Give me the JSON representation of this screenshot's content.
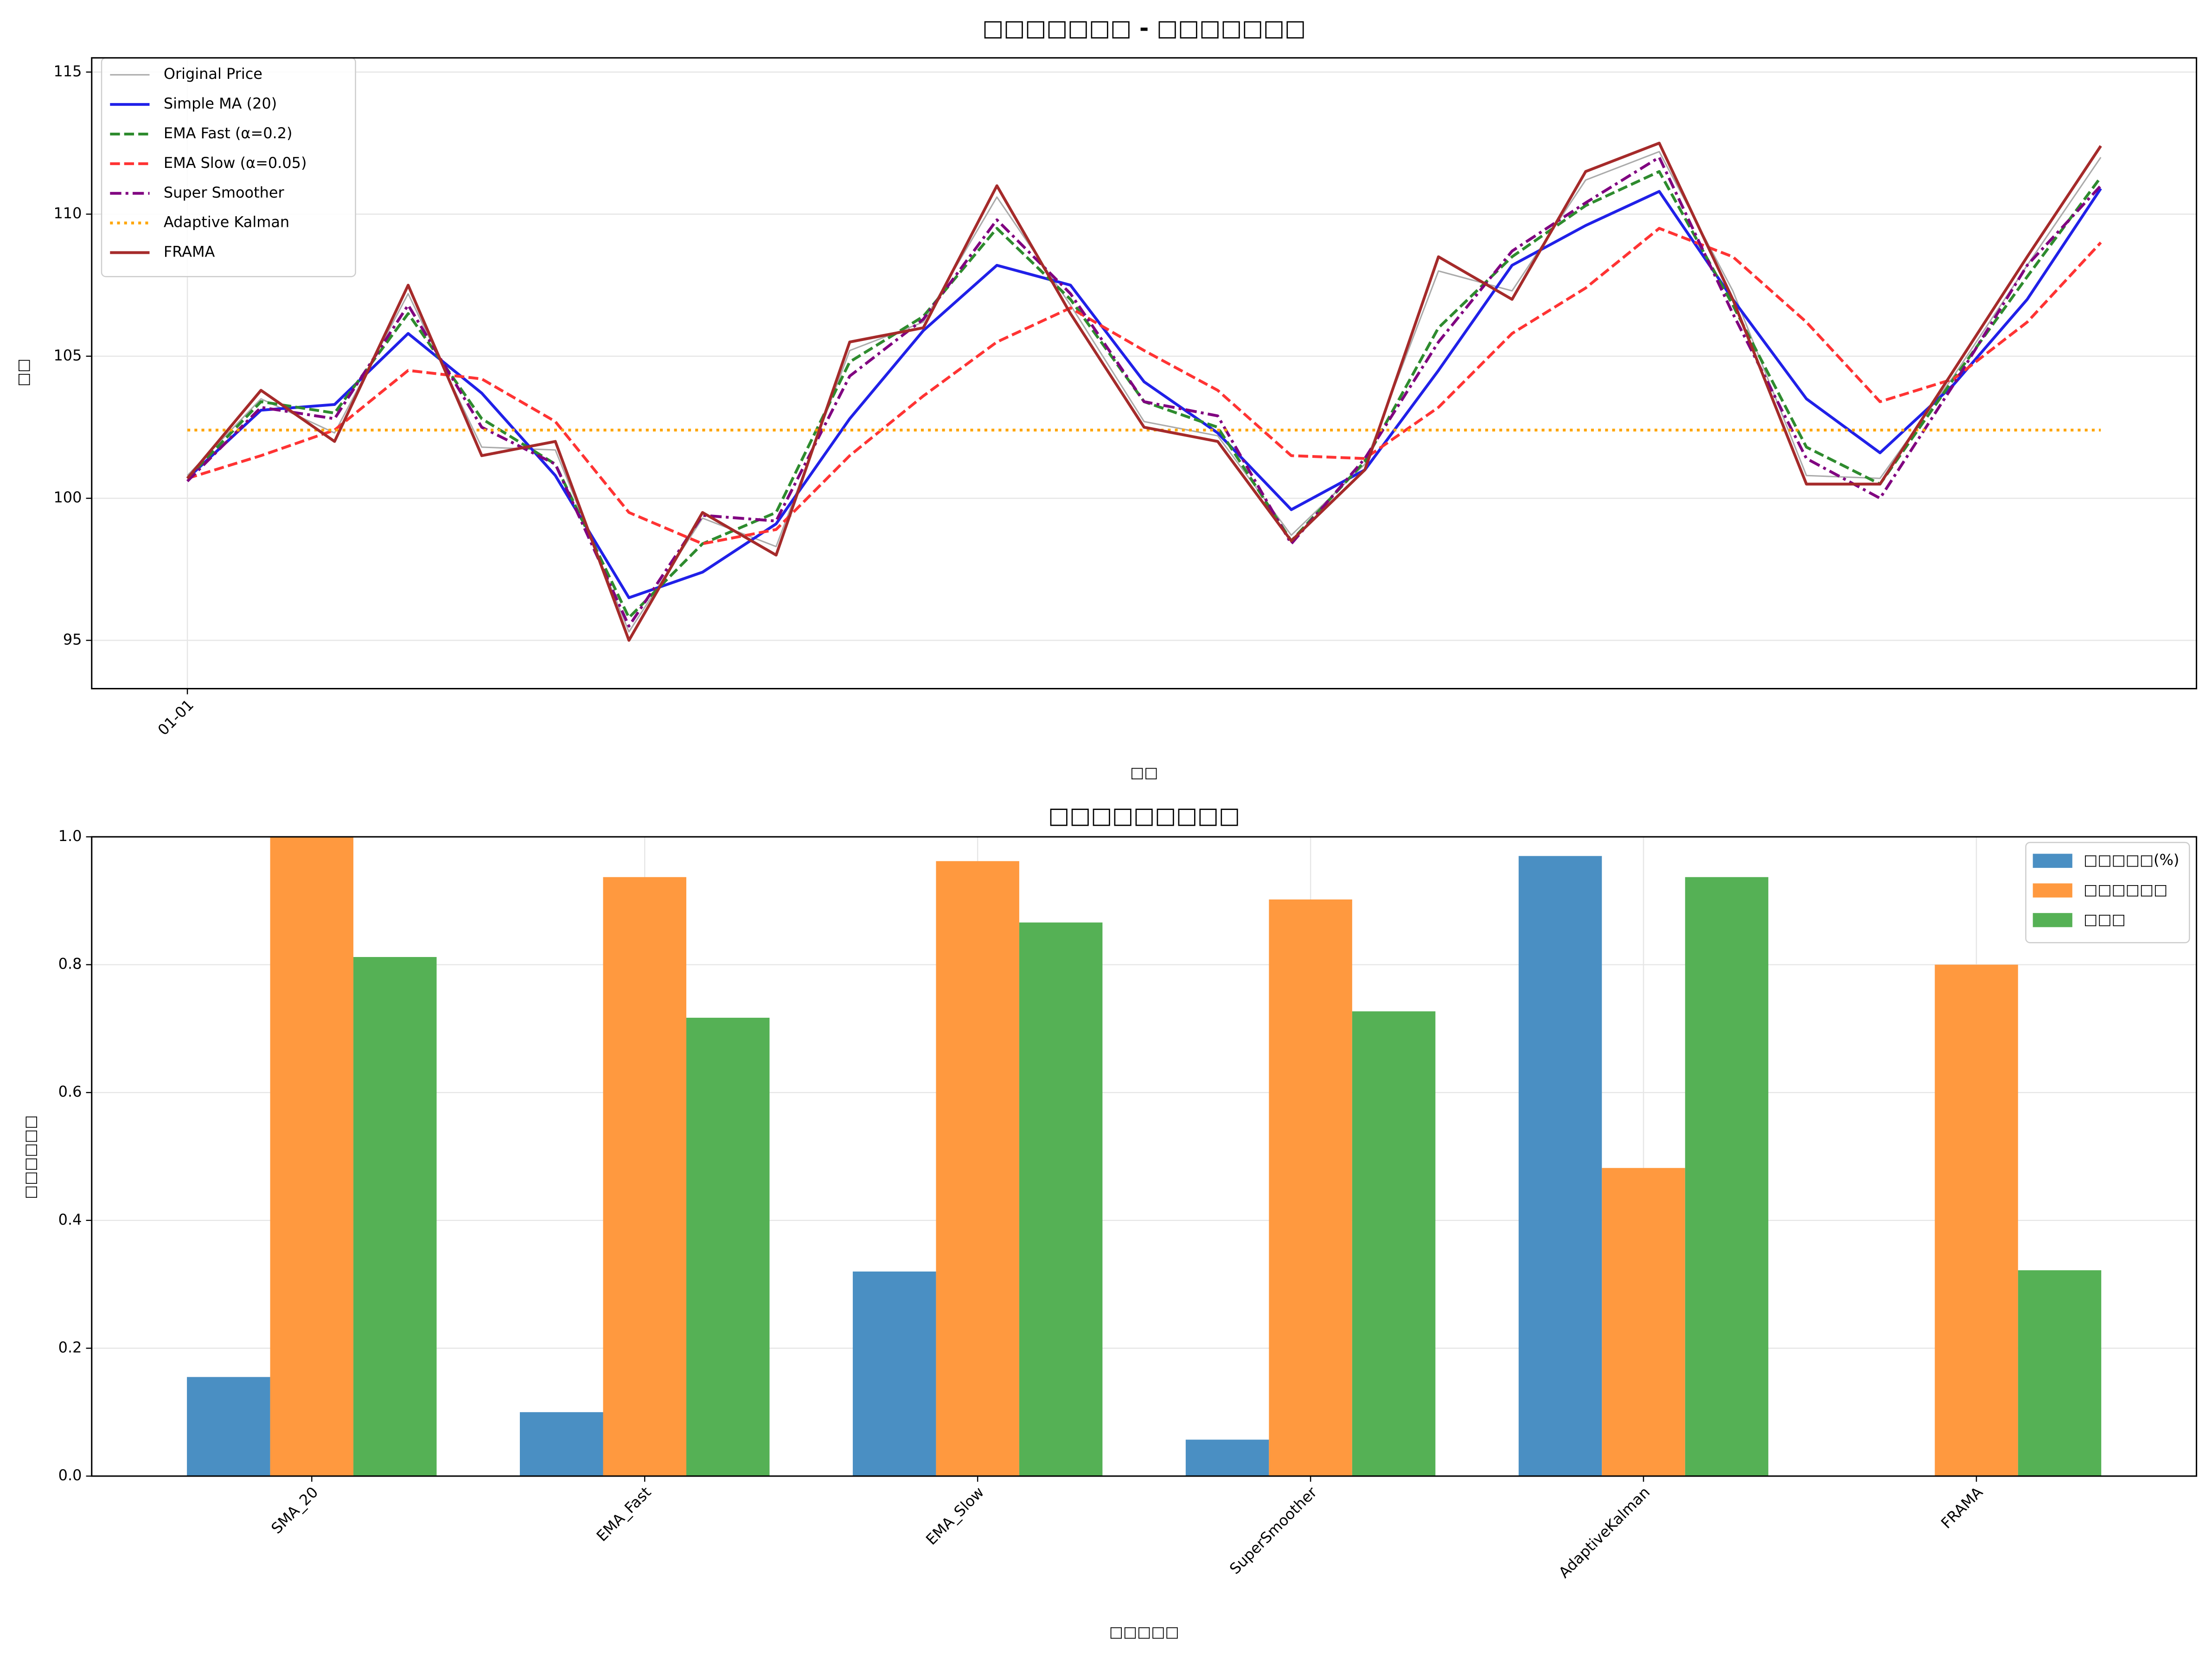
{
  "chart_data": [
    {
      "type": "line",
      "title": "□□□□□□□ - □□□□□□□",
      "x_label": "□□",
      "y_label": "□□",
      "x": [
        0,
        14,
        28,
        42,
        56,
        70,
        84,
        98,
        112,
        126,
        140,
        154,
        168,
        182,
        196,
        210,
        224,
        238,
        252,
        266,
        280,
        294,
        308,
        322,
        336,
        350,
        364
      ],
      "xlim": [
        -18.2,
        382.2
      ],
      "xticks": [
        {
          "value": 0,
          "label": "01-01"
        }
      ],
      "ylim": [
        93.3,
        115.5
      ],
      "yticks": [
        95,
        100,
        105,
        110,
        115
      ],
      "grid": true,
      "legend": "upper left",
      "series": [
        {
          "name": "Original Price",
          "color": "#aaaaaa",
          "style": "thin",
          "values": [
            100.8,
            103.5,
            102.3,
            107.2,
            101.8,
            101.7,
            95.3,
            99.3,
            98.3,
            105.2,
            106.2,
            110.6,
            106.8,
            102.7,
            102.2,
            98.7,
            101.2,
            108,
            107.3,
            111.2,
            112.2,
            107.3,
            100.8,
            100.7,
            104.3,
            108.2,
            112
          ]
        },
        {
          "name": "Simple MA (20)",
          "color": "#2020e8",
          "style": "solid",
          "values": [
            100.7,
            103.1,
            103.3,
            105.8,
            103.7,
            100.8,
            96.5,
            97.4,
            99.1,
            102.8,
            105.9,
            108.2,
            107.5,
            104.1,
            102.3,
            99.6,
            101,
            104.5,
            108.2,
            109.6,
            110.8,
            107,
            103.5,
            101.6,
            104,
            107,
            110.9
          ]
        },
        {
          "name": "EMA Fast (α=0.2)",
          "color": "#2e8b2e",
          "style": "dashed",
          "values": [
            100.7,
            103.4,
            103,
            106.5,
            102.8,
            101.2,
            95.8,
            98.4,
            99.5,
            104.8,
            106.4,
            109.5,
            107,
            103.4,
            102.5,
            98.5,
            101.3,
            106,
            108.5,
            110.3,
            111.5,
            106.8,
            101.8,
            100.5,
            104.2,
            107.8,
            111.3
          ]
        },
        {
          "name": "EMA Slow (α=0.05)",
          "color": "#ff3333",
          "style": "dashed",
          "values": [
            100.7,
            101.5,
            102.4,
            104.5,
            104.2,
            102.7,
            99.5,
            98.4,
            98.9,
            101.5,
            103.6,
            105.5,
            106.7,
            105.2,
            103.8,
            101.5,
            101.4,
            103.2,
            105.8,
            107.4,
            109.5,
            108.5,
            106.2,
            103.4,
            104.2,
            106.2,
            109
          ]
        },
        {
          "name": "Super Smoother",
          "color": "#800080",
          "style": "dashdot",
          "values": [
            100.6,
            103.2,
            102.8,
            106.8,
            102.5,
            101.2,
            95.5,
            99.4,
            99.2,
            104.3,
            106.3,
            109.8,
            107.2,
            103.4,
            102.9,
            98.4,
            101.4,
            105.5,
            108.7,
            110.4,
            112,
            106.5,
            101.4,
            100,
            104,
            108.2,
            111
          ]
        },
        {
          "name": "Adaptive Kalman",
          "color": "#ffa500",
          "style": "dotted",
          "values": [
            102.4,
            102.4,
            102.4,
            102.4,
            102.4,
            102.4,
            102.4,
            102.4,
            102.4,
            102.4,
            102.4,
            102.4,
            102.4,
            102.4,
            102.4,
            102.4,
            102.4,
            102.4,
            102.4,
            102.4,
            102.4,
            102.4,
            102.4,
            102.4,
            102.4,
            102.4,
            102.4
          ]
        },
        {
          "name": "FRAMA",
          "color": "#a52a2a",
          "style": "solid",
          "values": [
            100.7,
            103.8,
            102,
            107.5,
            101.5,
            102,
            95,
            99.5,
            98,
            105.5,
            106,
            111,
            106.5,
            102.5,
            102,
            98.5,
            101,
            108.5,
            107,
            111.5,
            112.5,
            107,
            100.5,
            100.5,
            104.5,
            108.5,
            112.4
          ]
        }
      ]
    },
    {
      "type": "bar",
      "title": "□□□□□□□□□",
      "x_label": "□□□□□",
      "y_label": "□□□□□□",
      "categories": [
        "SMA_20",
        "EMA_Fast",
        "EMA_Slow",
        "SuperSmoother",
        "AdaptiveKalman",
        "FRAMA"
      ],
      "ylim": [
        0,
        1
      ],
      "yticks": [
        {
          "value": 0,
          "label": "0.0"
        },
        0.2,
        0.4,
        0.6,
        0.8,
        {
          "value": 1,
          "label": "1.0"
        }
      ],
      "grid": true,
      "legend": "upper right",
      "series": [
        {
          "name": "□□□□□(%)",
          "color": "#4a8fc3",
          "values": [
            0.155,
            0.1,
            0.32,
            0.057,
            0.97,
            0
          ]
        },
        {
          "name": "□□□□□□",
          "color": "#ff993f",
          "values": [
            1.0,
            0.937,
            0.962,
            0.902,
            0.482,
            0.8
          ]
        },
        {
          "name": "□□□",
          "color": "#55b155",
          "values": [
            0.812,
            0.717,
            0.866,
            0.727,
            0.937,
            0.322
          ]
        }
      ]
    }
  ]
}
